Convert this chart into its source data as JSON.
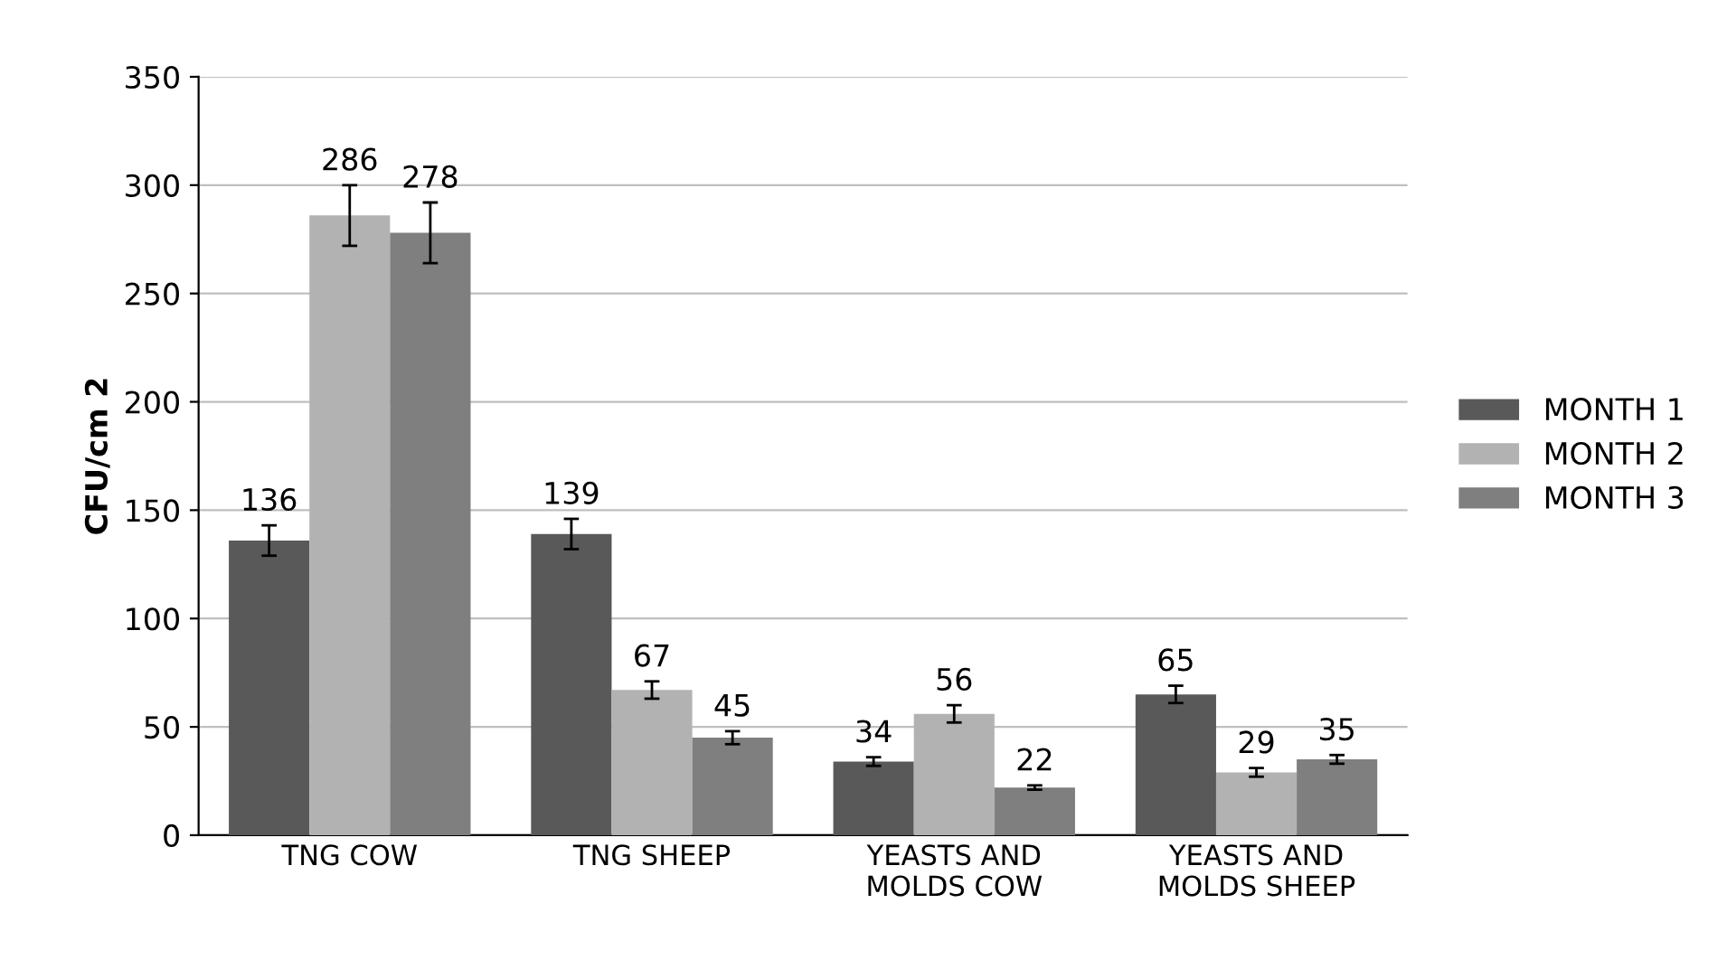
{
  "chart_data": {
    "type": "bar",
    "ylabel": "CFU/cm 2",
    "categories": [
      "TNG COW",
      "TNG SHEEP",
      "YEASTS AND\nMOLDS COW",
      "YEASTS AND\nMOLDS SHEEP"
    ],
    "series": [
      {
        "name": "MONTH 1",
        "color": "#595959",
        "values": [
          136,
          139,
          34,
          65
        ],
        "errors": [
          7,
          7,
          2,
          4
        ]
      },
      {
        "name": "MONTH 2",
        "color": "#b2b2b2",
        "values": [
          286,
          67,
          56,
          29
        ],
        "errors": [
          14,
          4,
          4,
          2
        ]
      },
      {
        "name": "MONTH 3",
        "color": "#7f7f7f",
        "values": [
          278,
          45,
          22,
          35
        ],
        "errors": [
          14,
          3,
          1,
          2
        ]
      }
    ],
    "ylim": [
      0,
      350
    ],
    "yticks": [
      0,
      50,
      100,
      150,
      200,
      250,
      300,
      350
    ],
    "grid": "y",
    "legend": "right",
    "data_labels": true
  }
}
